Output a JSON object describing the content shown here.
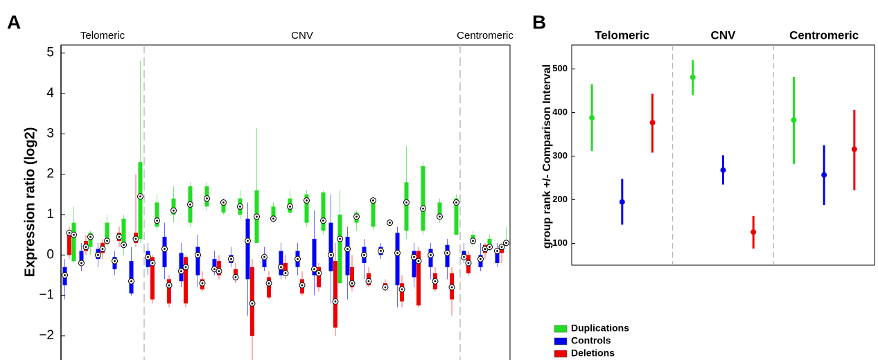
{
  "chart_data": [
    {
      "type": "box",
      "panel_label": "A",
      "ylabel": "Expression ratio (log2)",
      "groups": [
        "Telomeric",
        "CNV",
        "Centromeric"
      ],
      "ylim": [
        -2.6,
        5.2
      ],
      "yticks": [
        {
          "value": -2,
          "label": "−2"
        },
        {
          "value": -1,
          "label": "−1"
        },
        0,
        1,
        2,
        3,
        4,
        5
      ],
      "series": [
        {
          "color": "#0000ff",
          "values": [
            [
              [
                -1.1,
                -0.75,
                -0.5,
                -0.3,
                -0.1
              ],
              [
                -0.4,
                -0.25,
                -0.2,
                0.1,
                0.3
              ],
              [
                -0.3,
                -0.1,
                0.0,
                0.15,
                0.3
              ],
              [
                -0.5,
                -0.35,
                -0.15,
                -0.05,
                0.1
              ],
              [
                -1.0,
                -0.95,
                -0.65,
                -0.15,
                0.2
              ]
            ],
            [
              [
                -0.5,
                -0.3,
                -0.05,
                0.1,
                0.3
              ],
              [
                -0.6,
                -0.3,
                0.15,
                0.45,
                0.8
              ],
              [
                -0.8,
                -0.65,
                -0.4,
                0.05,
                0.3
              ],
              [
                -0.8,
                -0.5,
                0.0,
                0.2,
                0.5
              ],
              [
                -0.5,
                -0.4,
                -0.35,
                -0.1,
                0.1
              ],
              [
                -0.3,
                -0.2,
                -0.1,
                0.0,
                0.2
              ],
              [
                -1.5,
                -0.6,
                0.35,
                0.9,
                1.3
              ],
              [
                -0.4,
                -0.3,
                -0.05,
                0.0,
                0.2
              ],
              [
                -0.6,
                -0.5,
                -0.3,
                0.1,
                0.3
              ],
              [
                -0.5,
                -0.3,
                -0.1,
                0.1,
                0.3
              ],
              [
                -1.0,
                -0.5,
                -0.35,
                0.4,
                1.1
              ],
              [
                -1.2,
                -0.4,
                0.0,
                0.8,
                1.5
              ],
              [
                -1.1,
                -0.5,
                0.15,
                0.45,
                0.7
              ],
              [
                -0.6,
                -0.2,
                0.0,
                0.2,
                0.4
              ],
              [
                -0.1,
                0.0,
                0.1,
                0.2,
                0.3
              ],
              [
                -1.3,
                -0.75,
                0.05,
                0.55,
                0.7
              ],
              [
                -0.8,
                -0.55,
                -0.05,
                0.1,
                0.3
              ],
              [
                -0.6,
                -0.3,
                0.0,
                0.15,
                0.3
              ],
              [
                -0.6,
                -0.3,
                0.05,
                0.25,
                0.4
              ]
            ],
            [
              [
                -0.2,
                -0.1,
                -0.05,
                0.1,
                0.3
              ],
              [
                -0.4,
                -0.3,
                -0.1,
                0.0,
                0.3
              ],
              [
                -0.3,
                -0.2,
                0.1,
                0.15,
                0.3
              ]
            ]
          ]
        },
        {
          "color": "#ee0000",
          "values": [
            [
              [
                -0.1,
                0.0,
                0.55,
                0.6,
                0.7
              ],
              [
                0.0,
                0.1,
                0.2,
                0.35,
                0.5
              ],
              [
                -0.1,
                0.05,
                0.15,
                0.3,
                0.4
              ],
              [
                0.2,
                0.35,
                0.45,
                0.55,
                0.7
              ],
              [
                0.2,
                0.3,
                0.4,
                0.55,
                2.0
              ]
            ],
            [
              [
                -1.2,
                -1.1,
                -0.2,
                -0.05,
                0.0
              ],
              [
                -1.3,
                -1.2,
                -0.75,
                -0.6,
                -0.5
              ],
              [
                -1.3,
                -1.2,
                -0.3,
                -0.05,
                0.0
              ],
              [
                -0.9,
                -0.85,
                -0.7,
                -0.6,
                -0.4
              ],
              [
                -0.6,
                -0.5,
                -0.4,
                -0.15,
                0.0
              ],
              [
                -0.7,
                -0.6,
                -0.55,
                -0.35,
                -0.2
              ],
              [
                -2.6,
                -2.0,
                -1.2,
                -0.3,
                -0.1
              ],
              [
                -1.1,
                -1.05,
                -0.7,
                -0.55,
                -0.4
              ],
              [
                -0.6,
                -0.5,
                -0.45,
                -0.2,
                0.0
              ],
              [
                -1.0,
                -0.95,
                -0.75,
                -0.6,
                -0.4
              ],
              [
                -0.9,
                -0.8,
                -0.45,
                -0.3,
                -0.2
              ],
              [
                -2.0,
                -1.8,
                -1.15,
                -0.15,
                0.3
              ],
              [
                -0.9,
                -0.8,
                -0.7,
                -0.3,
                0.0
              ],
              [
                -0.8,
                -0.75,
                -0.65,
                -0.45,
                -0.3
              ],
              [
                -0.9,
                -0.85,
                -0.8,
                -0.7,
                -0.6
              ],
              [
                -1.3,
                -1.15,
                -0.85,
                -0.7,
                -0.5
              ],
              [
                -1.3,
                -1.25,
                -0.15,
                0.1,
                0.2
              ],
              [
                -0.9,
                -0.85,
                -0.65,
                -0.45,
                -0.3
              ],
              [
                -1.5,
                -1.1,
                -0.8,
                -0.45,
                -0.3
              ]
            ],
            [
              [
                -0.5,
                -0.45,
                -0.2,
                0.0,
                0.1
              ],
              [
                -0.1,
                0.05,
                0.15,
                0.25,
                0.3
              ],
              [
                -0.2,
                0.05,
                0.2,
                0.25,
                0.3
              ]
            ]
          ]
        },
        {
          "color": "#22dd22",
          "values": [
            [
              [
                -0.2,
                -0.15,
                0.5,
                0.8,
                1.2
              ],
              [
                0.0,
                0.2,
                0.45,
                0.55,
                0.6
              ],
              [
                0.2,
                0.3,
                0.35,
                0.8,
                1.0
              ],
              [
                0.0,
                0.2,
                0.25,
                0.9,
                1.0
              ],
              [
                0.3,
                0.4,
                1.45,
                2.3,
                4.8
              ]
            ],
            [
              [
                0.6,
                0.7,
                0.85,
                1.3,
                1.5
              ],
              [
                0.8,
                1.0,
                1.1,
                1.4,
                1.7
              ],
              [
                0.7,
                0.8,
                1.25,
                1.7,
                1.8
              ],
              [
                1.1,
                1.2,
                1.4,
                1.7,
                1.8
              ],
              [
                1.0,
                1.05,
                1.3,
                1.3,
                1.4
              ],
              [
                0.9,
                1.0,
                1.2,
                1.4,
                1.6
              ],
              [
                0.3,
                0.3,
                0.95,
                1.6,
                3.15
              ],
              [
                0.8,
                0.9,
                0.9,
                1.2,
                1.3
              ],
              [
                1.0,
                1.05,
                1.2,
                1.4,
                1.6
              ],
              [
                0.7,
                0.8,
                1.35,
                1.5,
                1.6
              ],
              [
                0.5,
                0.6,
                0.85,
                1.55,
                1.6
              ],
              [
                -0.7,
                -0.7,
                0.4,
                1.0,
                1.6
              ],
              [
                0.6,
                0.8,
                0.95,
                1.05,
                1.1
              ],
              [
                0.6,
                0.7,
                1.35,
                1.35,
                1.4
              ],
              [
                0.8,
                0.8,
                0.8,
                0.85,
                0.9
              ],
              [
                0.4,
                0.6,
                1.3,
                1.8,
                2.7
              ],
              [
                0.5,
                0.6,
                1.15,
                2.2,
                2.3
              ],
              [
                0.8,
                0.9,
                0.95,
                1.3,
                1.4
              ],
              [
                0.5,
                0.5,
                1.3,
                1.4,
                1.5
              ]
            ],
            [
              [
                0.2,
                0.3,
                0.35,
                0.5,
                0.6
              ],
              [
                0.1,
                0.15,
                0.2,
                0.4,
                0.5
              ],
              [
                0.2,
                0.3,
                0.3,
                0.35,
                0.7
              ]
            ]
          ]
        }
      ]
    },
    {
      "type": "interval",
      "panel_label": "B",
      "ylabel": "group rank +/- Comparison Interval",
      "categories": [
        "Telomeric",
        "CNV",
        "Centromeric"
      ],
      "ylim": [
        50,
        555
      ],
      "yticks": [
        100,
        200,
        300,
        400,
        500
      ],
      "series": [
        {
          "name": "Duplications",
          "color": "#22dd22",
          "values": [
            388,
            481,
            383
          ],
          "low": [
            312,
            440,
            282
          ],
          "high": [
            465,
            520,
            482
          ]
        },
        {
          "name": "Controls",
          "color": "#0000ee",
          "values": [
            195,
            268,
            257
          ],
          "low": [
            143,
            235,
            188
          ],
          "high": [
            248,
            302,
            325
          ]
        },
        {
          "name": "Deletions",
          "color": "#ee0000",
          "values": [
            377,
            126,
            316
          ],
          "low": [
            308,
            88,
            222
          ],
          "high": [
            443,
            163,
            406
          ]
        }
      ]
    }
  ]
}
